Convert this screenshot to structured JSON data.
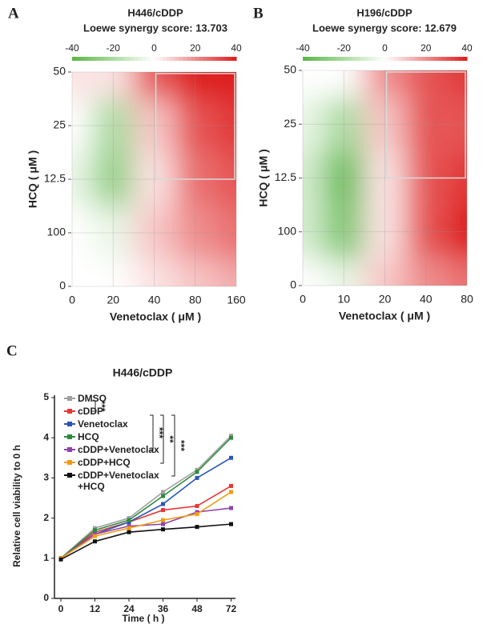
{
  "panels": [
    "A",
    "B",
    "C"
  ],
  "chart_data": [
    {
      "type": "heatmap",
      "title": "H446/cDDP",
      "subtitle": "Loewe synergy score: 13.703",
      "x_label": "Venetoclax ( μM )",
      "y_label": "HCQ ( μM )",
      "x_categories": [
        "0",
        "20",
        "40",
        "80",
        "160"
      ],
      "y_categories": [
        "0",
        "100",
        "12.5",
        "25",
        "50"
      ],
      "values": [
        [
          0,
          0,
          5,
          10,
          15
        ],
        [
          0,
          -5,
          10,
          20,
          25
        ],
        [
          -5,
          -25,
          5,
          25,
          30
        ],
        [
          0,
          -20,
          10,
          30,
          35
        ],
        [
          5,
          5,
          30,
          40,
          40
        ]
      ],
      "clim": [
        -40,
        40
      ],
      "cticks": [
        -40,
        -20,
        0,
        20,
        40
      ]
    },
    {
      "type": "heatmap",
      "title": "H196/cDDP",
      "subtitle": "Loewe synergy score: 12.679",
      "x_label": "Venetoclax ( μM )",
      "y_label": "HCQ ( μM )",
      "x_categories": [
        "0",
        "10",
        "20",
        "40",
        "80"
      ],
      "y_categories": [
        "0",
        "100",
        "12.5",
        "25",
        "50"
      ],
      "values": [
        [
          0,
          -5,
          10,
          20,
          25
        ],
        [
          -10,
          -30,
          5,
          30,
          40
        ],
        [
          -10,
          -35,
          5,
          30,
          35
        ],
        [
          -5,
          -20,
          10,
          30,
          30
        ],
        [
          0,
          0,
          20,
          30,
          35
        ]
      ],
      "clim": [
        -40,
        40
      ],
      "cticks": [
        -40,
        -20,
        0,
        20,
        40
      ]
    },
    {
      "type": "line",
      "title": "H446/cDDP",
      "x_label": "Time ( h )",
      "y_label": "Relative cell viability to 0 h",
      "categories": [
        "0",
        "12",
        "24",
        "36",
        "48",
        "72"
      ],
      "ylim": [
        0,
        5
      ],
      "yticks": [
        0,
        1,
        2,
        3,
        4,
        5
      ],
      "annotations": [
        "***",
        "***",
        "**",
        "***"
      ],
      "series": [
        {
          "name": "DMSO",
          "color": "#a0a0a0",
          "values": [
            1,
            1.75,
            2.0,
            2.65,
            3.2,
            4.05
          ]
        },
        {
          "name": "cDDP",
          "color": "#e53935",
          "values": [
            1,
            1.65,
            1.9,
            2.2,
            2.3,
            2.8
          ]
        },
        {
          "name": "Venetoclax",
          "color": "#2a56b8",
          "values": [
            1,
            1.6,
            1.9,
            2.35,
            3.0,
            3.5
          ]
        },
        {
          "name": "HCQ",
          "color": "#2e8b3e",
          "values": [
            1,
            1.7,
            1.95,
            2.55,
            3.15,
            4.0
          ]
        },
        {
          "name": "cDDP+Venetoclax",
          "color": "#8e44ad",
          "values": [
            1,
            1.6,
            1.8,
            1.85,
            2.15,
            2.25
          ]
        },
        {
          "name": "cDDP+HCQ",
          "color": "#f39c12",
          "values": [
            1,
            1.55,
            1.75,
            1.95,
            2.1,
            2.65
          ]
        },
        {
          "name": "cDDP+Venetoclax +HCQ",
          "color": "#111111",
          "values": [
            0.97,
            1.42,
            1.65,
            1.72,
            1.78,
            1.85
          ]
        }
      ]
    }
  ]
}
